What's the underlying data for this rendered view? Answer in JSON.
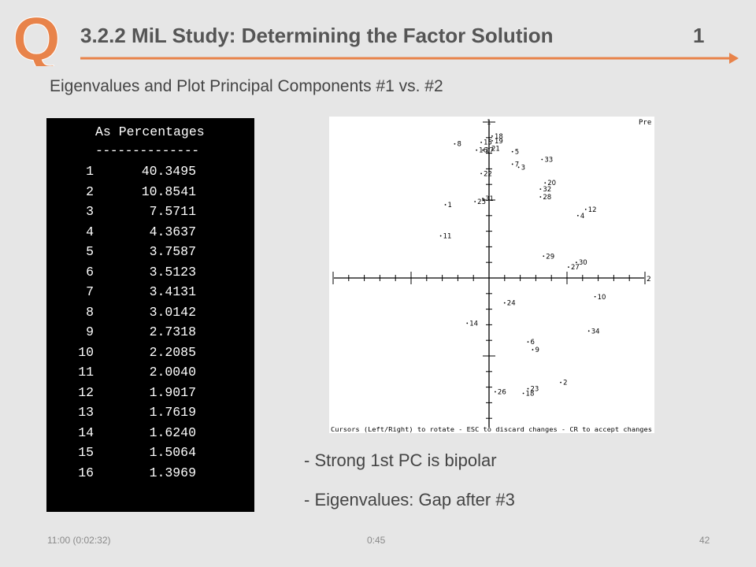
{
  "slide": {
    "logo_letter": "Q",
    "title": "3.2.2 MiL Study: Determining the Factor Solution",
    "title_number": "1",
    "subtitle": "Eigenvalues and Plot Principal Components #1 vs. #2",
    "accent_color": "#e8834a"
  },
  "eigen": {
    "header": "As Percentages",
    "divider": "--------------",
    "rows": [
      {
        "i": "1",
        "v": "40.3495"
      },
      {
        "i": "2",
        "v": "10.8541"
      },
      {
        "i": "3",
        "v": "7.5711"
      },
      {
        "i": "4",
        "v": "4.3637"
      },
      {
        "i": "5",
        "v": "3.7587"
      },
      {
        "i": "6",
        "v": "3.5123"
      },
      {
        "i": "7",
        "v": "3.4131"
      },
      {
        "i": "8",
        "v": "3.0142"
      },
      {
        "i": "9",
        "v": "2.7318"
      },
      {
        "i": "10",
        "v": "2.2085"
      },
      {
        "i": "11",
        "v": "2.0040"
      },
      {
        "i": "12",
        "v": "1.9017"
      },
      {
        "i": "13",
        "v": "1.7619"
      },
      {
        "i": "14",
        "v": "1.6240"
      },
      {
        "i": "15",
        "v": "1.5064"
      },
      {
        "i": "16",
        "v": "1.3969"
      }
    ]
  },
  "chart_data": {
    "type": "scatter",
    "title": "",
    "xlabel": "",
    "ylabel": "",
    "xlim": [
      -1,
      1
    ],
    "ylim": [
      -1,
      1
    ],
    "x_axis_end_label": "2",
    "y_axis_end_label": "1",
    "corner_text": "Pre",
    "status_text": "Cursors (Left/Right) to rotate - ESC to discard changes - CR to accept changes",
    "points": [
      {
        "label": "18",
        "x": 0.02,
        "y": 0.91
      },
      {
        "label": "8",
        "x": -0.22,
        "y": 0.86
      },
      {
        "label": "15",
        "x": -0.05,
        "y": 0.87
      },
      {
        "label": "19",
        "x": 0.02,
        "y": 0.88
      },
      {
        "label": "16",
        "x": -0.08,
        "y": 0.82
      },
      {
        "label": "17",
        "x": -0.04,
        "y": 0.82
      },
      {
        "label": "21",
        "x": 0.0,
        "y": 0.83
      },
      {
        "label": "5",
        "x": 0.15,
        "y": 0.81
      },
      {
        "label": "33",
        "x": 0.34,
        "y": 0.76
      },
      {
        "label": "7",
        "x": 0.15,
        "y": 0.73
      },
      {
        "label": "3",
        "x": 0.19,
        "y": 0.71
      },
      {
        "label": "22",
        "x": -0.05,
        "y": 0.67
      },
      {
        "label": "20",
        "x": 0.36,
        "y": 0.61
      },
      {
        "label": "32",
        "x": 0.33,
        "y": 0.57
      },
      {
        "label": "28",
        "x": 0.33,
        "y": 0.52
      },
      {
        "label": "1",
        "x": -0.28,
        "y": 0.47
      },
      {
        "label": "25",
        "x": -0.09,
        "y": 0.49
      },
      {
        "label": "31",
        "x": -0.04,
        "y": 0.51
      },
      {
        "label": "12",
        "x": 0.62,
        "y": 0.44
      },
      {
        "label": "4",
        "x": 0.57,
        "y": 0.4
      },
      {
        "label": "11",
        "x": -0.31,
        "y": 0.27
      },
      {
        "label": "29",
        "x": 0.35,
        "y": 0.14
      },
      {
        "label": "30",
        "x": 0.56,
        "y": 0.1
      },
      {
        "label": "27",
        "x": 0.51,
        "y": 0.07
      },
      {
        "label": "24",
        "x": 0.1,
        "y": -0.16
      },
      {
        "label": "10",
        "x": 0.68,
        "y": -0.12
      },
      {
        "label": "14",
        "x": -0.14,
        "y": -0.29
      },
      {
        "label": "34",
        "x": 0.64,
        "y": -0.34
      },
      {
        "label": "6",
        "x": 0.25,
        "y": -0.41
      },
      {
        "label": "9",
        "x": 0.28,
        "y": -0.46
      },
      {
        "label": "2",
        "x": 0.46,
        "y": -0.67
      },
      {
        "label": "23",
        "x": 0.25,
        "y": -0.71
      },
      {
        "label": "26",
        "x": 0.04,
        "y": -0.73
      },
      {
        "label": "18",
        "x": 0.22,
        "y": -0.74
      }
    ]
  },
  "bullets": [
    "-  Strong 1st PC is bipolar",
    "-  Eigenvalues: Gap after #3"
  ],
  "footer": {
    "left": "11:00  (0:02:32)",
    "middle": "0:45",
    "right": "42"
  }
}
